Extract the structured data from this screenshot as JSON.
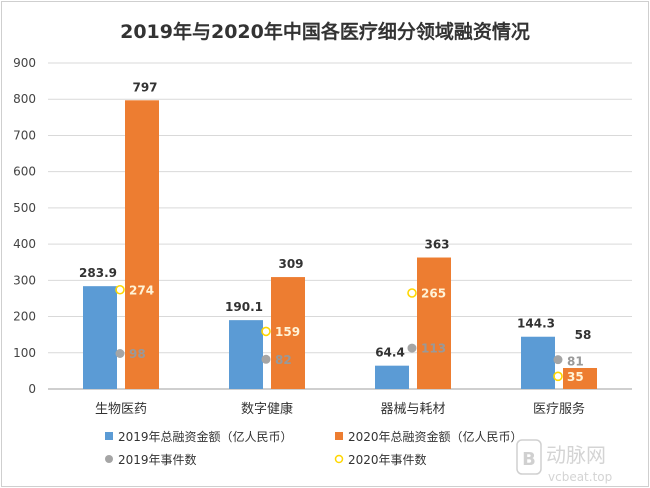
{
  "chart_data": {
    "type": "bar",
    "title": "2019年与2020年中国各医疗细分领域融资情况",
    "categories": [
      "生物医药",
      "数字健康",
      "器械与耗材",
      "医疗服务"
    ],
    "series": [
      {
        "name": "2019年总融资金额（亿人民币）",
        "kind": "bar",
        "color": "#5b9bd5",
        "values": [
          283.9,
          190.1,
          64.4,
          144.3
        ]
      },
      {
        "name": "2020年总融资金额（亿人民币）",
        "kind": "bar",
        "color": "#ed7d31",
        "values": [
          797,
          309,
          363,
          58
        ]
      },
      {
        "name": "2019年事件数",
        "kind": "marker",
        "color": "#a5a5a5",
        "values": [
          98,
          82,
          113,
          81
        ]
      },
      {
        "name": "2020年事件数",
        "kind": "marker-hollow",
        "color": "#ffd700",
        "values": [
          274,
          159,
          265,
          35
        ]
      }
    ],
    "ylim": [
      0,
      900
    ],
    "yticks": [
      "0",
      "100",
      "200",
      "300",
      "400",
      "500",
      "600",
      "700",
      "800",
      "900"
    ],
    "grid": true,
    "legend": "bottom"
  },
  "watermark": {
    "logo_text": "动脉网",
    "site": "vcbeat.top"
  }
}
